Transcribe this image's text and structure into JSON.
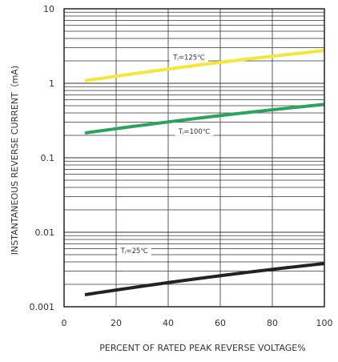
{
  "chart_data": {
    "type": "line",
    "xlabel": "PERCENT OF RATED PEAK REVERSE VOLTAGE%",
    "ylabel": "INSTANTANEOUS REVERSE CURRENT（mA)",
    "x_scale": "linear",
    "y_scale": "log",
    "xlim": [
      0,
      100
    ],
    "ylim": [
      0.001,
      10
    ],
    "x_ticks": [
      {
        "value": 0,
        "label": "0"
      },
      {
        "value": 20,
        "label": "20"
      },
      {
        "value": 40,
        "label": "40"
      },
      {
        "value": 60,
        "label": "60"
      },
      {
        "value": 80,
        "label": "80"
      },
      {
        "value": 100,
        "label": "100"
      }
    ],
    "y_ticks": [
      {
        "value": 0.001,
        "label": "0.001"
      },
      {
        "value": 0.01,
        "label": "0.01"
      },
      {
        "value": 0.1,
        "label": "0.1"
      },
      {
        "value": 1,
        "label": "1"
      },
      {
        "value": 10,
        "label": "10"
      }
    ],
    "grid": true,
    "series": [
      {
        "name": "Tⱼ=125℃",
        "color": "#f5e63a",
        "x": [
          8,
          100
        ],
        "y": [
          1.08,
          2.75
        ],
        "label_at": {
          "x": 48,
          "y": 2.25
        }
      },
      {
        "name": "Tⱼ=100℃",
        "color": "#2aa35f",
        "x": [
          8,
          100
        ],
        "y": [
          0.215,
          0.52
        ],
        "label_at": {
          "x": 50,
          "y": 0.23
        }
      },
      {
        "name": "Tⱼ=25℃",
        "color": "#222222",
        "x": [
          8,
          100
        ],
        "y": [
          0.00145,
          0.0038
        ],
        "label_at": {
          "x": 27,
          "y": 0.0057
        }
      }
    ]
  }
}
